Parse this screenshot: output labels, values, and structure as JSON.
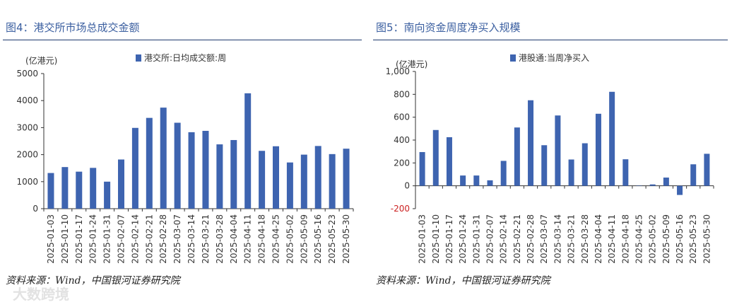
{
  "charts": [
    {
      "figure_title": "图4：港交所市场总成交金额",
      "source": "资料来源：Wind，中国银河证券研究院",
      "unit_label": "(亿港元)",
      "bar_color": "#3e64b0",
      "chart_data": {
        "type": "bar",
        "categories": [
          "2025-01-03",
          "2025-01-10",
          "2025-01-17",
          "2025-01-24",
          "2025-01-31",
          "2025-02-07",
          "2025-02-14",
          "2025-02-21",
          "2025-02-28",
          "2025-03-07",
          "2025-03-14",
          "2025-03-21",
          "2025-03-28",
          "2025-04-04",
          "2025-04-11",
          "2025-04-18",
          "2025-04-25",
          "2025-05-02",
          "2025-05-09",
          "2025-05-16",
          "2025-05-23",
          "2025-05-30"
        ],
        "series": [
          {
            "name": "港交所:日均成交额:周",
            "values": [
              1320,
              1540,
              1370,
              1510,
              1000,
              1820,
              2990,
              3360,
              3740,
              3180,
              2830,
              2880,
              2380,
              2540,
              4270,
              2140,
              2310,
              1710,
              2000,
              2320,
              2020,
              2220
            ]
          }
        ],
        "ylim": [
          0,
          5000
        ],
        "yticks": [
          0,
          1000,
          2000,
          3000,
          4000,
          5000
        ],
        "ytick_labels": [
          "0",
          "1000",
          "2000",
          "3000",
          "4000",
          "5000"
        ],
        "legend_position": "top-center",
        "grid": false
      }
    },
    {
      "figure_title": "图5：南向资金周度净买入规模",
      "source": "资料来源：Wind，中国银河证券研究院",
      "unit_label": "(亿港元)",
      "bar_color": "#3e64b0",
      "chart_data": {
        "type": "bar",
        "categories": [
          "2025-01-03",
          "2025-01-10",
          "2025-01-17",
          "2025-01-24",
          "2025-01-31",
          "2025-02-07",
          "2025-02-14",
          "2025-02-21",
          "2025-02-28",
          "2025-03-07",
          "2025-03-14",
          "2025-03-21",
          "2025-03-28",
          "2025-04-04",
          "2025-04-11",
          "2025-04-18",
          "2025-04-25",
          "2025-05-02",
          "2025-05-09",
          "2025-05-16",
          "2025-05-23",
          "2025-05-30"
        ],
        "series": [
          {
            "name": "港股通:当周净买入",
            "values": [
              295,
              488,
              425,
              90,
              90,
              48,
              218,
              510,
              748,
              355,
              615,
              230,
              372,
              630,
              822,
              232,
              3,
              12,
              72,
              -80,
              188,
              280
            ]
          }
        ],
        "ylim": [
          -200,
          1000
        ],
        "yticks": [
          -200,
          0,
          200,
          400,
          600,
          800,
          1000
        ],
        "ytick_labels": [
          "-200",
          "0",
          "200",
          "400",
          "600",
          "800",
          "1,000"
        ],
        "legend_position": "top-center",
        "grid": false
      }
    }
  ],
  "watermark": "大数跨境"
}
